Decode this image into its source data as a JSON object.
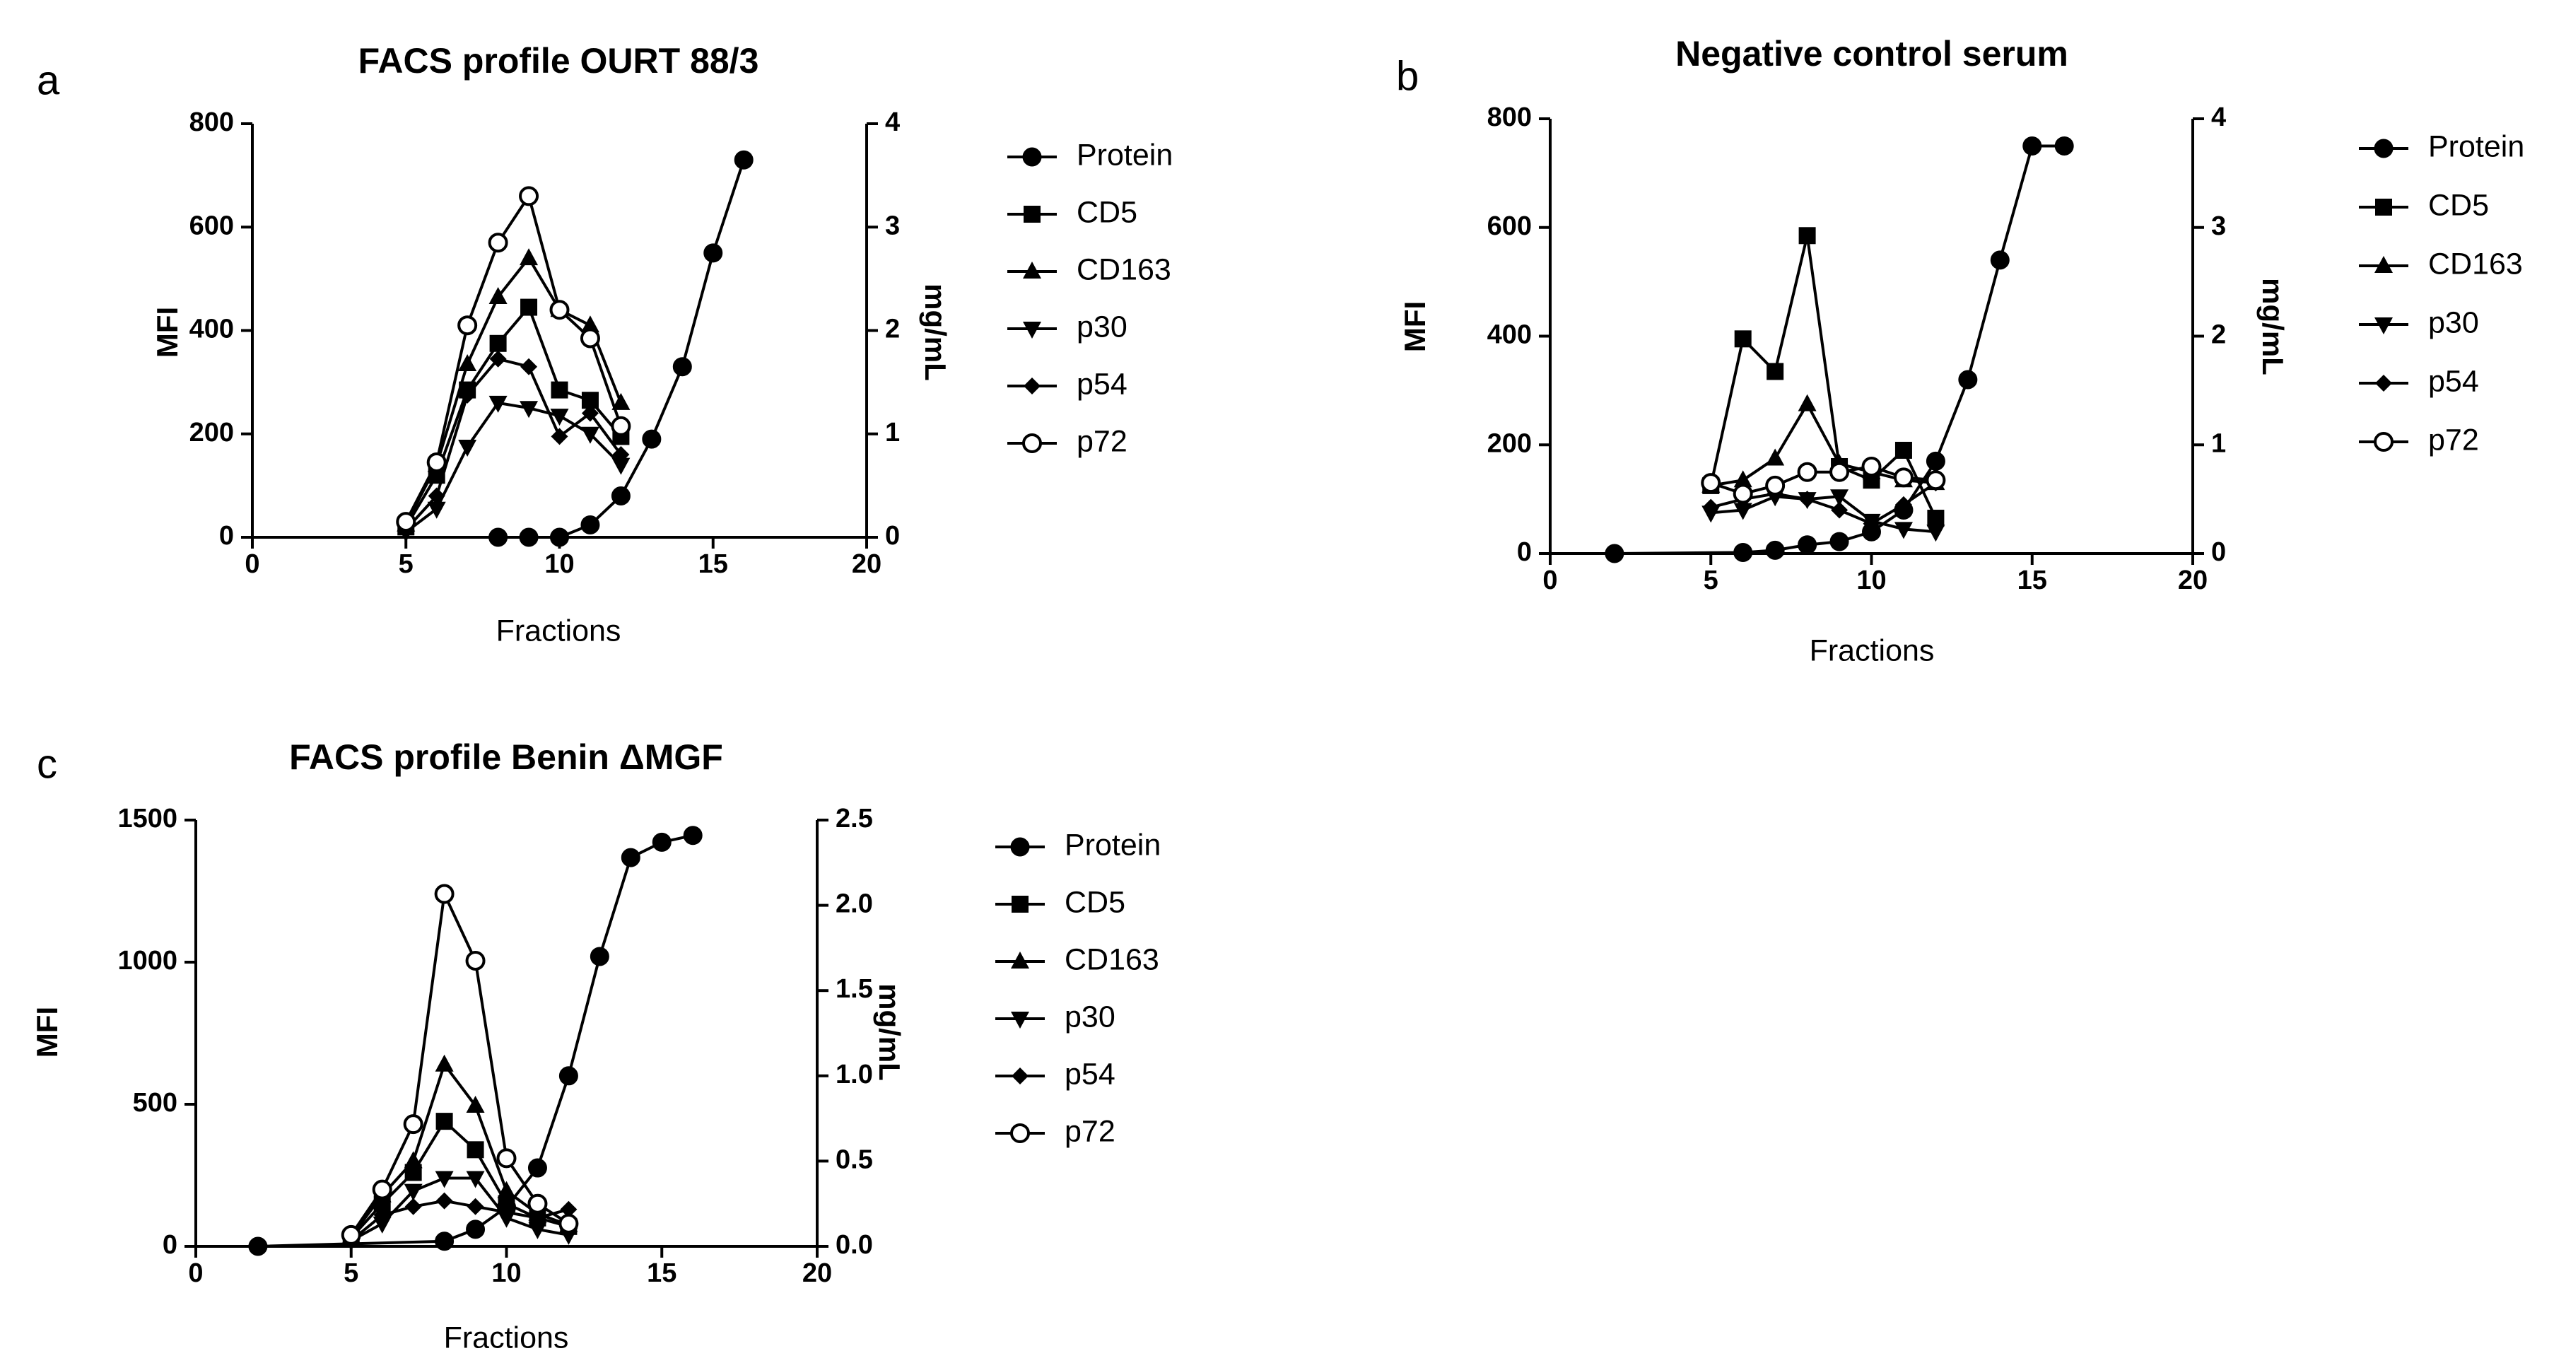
{
  "chart_data": [
    {
      "type": "line",
      "panel": "a",
      "title": "FACS profile OURT 88/3",
      "xlabel": "Fractions",
      "ylabel": "MFI",
      "y2label": "mg/mL",
      "xlim": [
        0,
        20
      ],
      "ylim": [
        0,
        800
      ],
      "y2lim": [
        0,
        4
      ],
      "xticks": [
        0,
        5,
        10,
        15,
        20
      ],
      "yticks": [
        0,
        200,
        400,
        600,
        800
      ],
      "y2ticks": [
        0,
        1,
        2,
        3,
        4
      ],
      "grid": false,
      "legend": "right",
      "series": [
        {
          "name": "Protein",
          "axis": "right",
          "marker": "circle-filled",
          "x": [
            8,
            9,
            10,
            11,
            12,
            13,
            14,
            15,
            16
          ],
          "y": [
            0,
            0,
            0,
            0.12,
            0.4,
            0.95,
            1.65,
            2.75,
            3.65
          ]
        },
        {
          "name": "CD5",
          "axis": "left",
          "marker": "square",
          "x": [
            5,
            6,
            7,
            8,
            9,
            10,
            11,
            12
          ],
          "y": [
            20,
            120,
            285,
            375,
            445,
            285,
            265,
            195
          ]
        },
        {
          "name": "CD163",
          "axis": "left",
          "marker": "triangle-up",
          "x": [
            5,
            6,
            7,
            8,
            9,
            10,
            11,
            12
          ],
          "y": [
            25,
            140,
            335,
            465,
            540,
            440,
            410,
            260
          ]
        },
        {
          "name": "p30",
          "axis": "left",
          "marker": "triangle-down",
          "x": [
            5,
            6,
            7,
            8,
            9,
            10,
            11,
            12
          ],
          "y": [
            10,
            55,
            175,
            260,
            250,
            235,
            200,
            140
          ]
        },
        {
          "name": "p54",
          "axis": "left",
          "marker": "diamond",
          "x": [
            5,
            6,
            7,
            8,
            9,
            10,
            11,
            12
          ],
          "y": [
            15,
            80,
            275,
            345,
            330,
            195,
            240,
            160
          ]
        },
        {
          "name": "p72",
          "axis": "left",
          "marker": "circle-open",
          "x": [
            5,
            6,
            7,
            8,
            9,
            10,
            11,
            12
          ],
          "y": [
            30,
            145,
            410,
            570,
            660,
            440,
            385,
            215
          ]
        }
      ]
    },
    {
      "type": "line",
      "panel": "b",
      "title": "Negative control serum",
      "xlabel": "Fractions",
      "ylabel": "MFI",
      "y2label": "mg/mL",
      "xlim": [
        0,
        20
      ],
      "ylim": [
        0,
        800
      ],
      "y2lim": [
        0,
        4
      ],
      "xticks": [
        0,
        5,
        10,
        15,
        20
      ],
      "yticks": [
        0,
        200,
        400,
        600,
        800
      ],
      "y2ticks": [
        0,
        1,
        2,
        3,
        4
      ],
      "grid": false,
      "legend": "right",
      "series": [
        {
          "name": "Protein",
          "axis": "right",
          "marker": "circle-filled",
          "x": [
            2,
            6,
            7,
            8,
            9,
            10,
            11,
            12,
            13,
            14,
            15,
            16
          ],
          "y": [
            0,
            0.01,
            0.03,
            0.08,
            0.11,
            0.2,
            0.4,
            0.85,
            1.6,
            2.7,
            3.75,
            3.75
          ]
        },
        {
          "name": "CD5",
          "axis": "left",
          "marker": "square",
          "x": [
            5,
            6,
            7,
            8,
            9,
            10,
            11,
            12
          ],
          "y": [
            125,
            395,
            335,
            585,
            160,
            135,
            190,
            65
          ]
        },
        {
          "name": "CD163",
          "axis": "left",
          "marker": "triangle-up",
          "x": [
            5,
            6,
            7,
            8,
            9,
            10,
            11,
            12
          ],
          "y": [
            125,
            135,
            175,
            275,
            165,
            150,
            135,
            130
          ]
        },
        {
          "name": "p30",
          "axis": "left",
          "marker": "triangle-down",
          "x": [
            5,
            6,
            7,
            8,
            9,
            10,
            11,
            12
          ],
          "y": [
            75,
            80,
            105,
            100,
            105,
            60,
            45,
            40
          ]
        },
        {
          "name": "p54",
          "axis": "left",
          "marker": "diamond",
          "x": [
            5,
            6,
            7,
            8,
            9,
            10,
            11,
            12
          ],
          "y": [
            85,
            100,
            110,
            100,
            80,
            55,
            90,
            130
          ]
        },
        {
          "name": "p72",
          "axis": "left",
          "marker": "circle-open",
          "x": [
            5,
            6,
            7,
            8,
            9,
            10,
            11,
            12
          ],
          "y": [
            130,
            110,
            125,
            150,
            150,
            160,
            140,
            135
          ]
        }
      ]
    },
    {
      "type": "line",
      "panel": "c",
      "title": "FACS profile Benin ΔMGF",
      "xlabel": "Fractions",
      "ylabel": "MFI",
      "y2label": "mg/mL",
      "xlim": [
        0,
        20
      ],
      "ylim": [
        0,
        1500
      ],
      "y2lim": [
        0,
        2.5
      ],
      "xticks": [
        0,
        5,
        10,
        15,
        20
      ],
      "yticks": [
        0,
        500,
        1000,
        1500
      ],
      "y2ticks": [
        0.0,
        0.5,
        1.0,
        1.5,
        2.0,
        2.5
      ],
      "grid": false,
      "legend": "right",
      "series": [
        {
          "name": "Protein",
          "axis": "right",
          "marker": "circle-filled",
          "x": [
            2,
            8,
            9,
            10,
            11,
            12,
            13,
            14,
            15,
            16
          ],
          "y": [
            0,
            0.03,
            0.1,
            0.23,
            0.46,
            1.0,
            1.7,
            2.28,
            2.37,
            2.41
          ]
        },
        {
          "name": "CD5",
          "axis": "left",
          "marker": "square",
          "x": [
            5,
            6,
            7,
            8,
            9,
            10,
            11,
            12
          ],
          "y": [
            30,
            150,
            260,
            440,
            340,
            150,
            100,
            70
          ]
        },
        {
          "name": "CD163",
          "axis": "left",
          "marker": "triangle-up",
          "x": [
            5,
            6,
            7,
            8,
            9,
            10,
            11,
            12
          ],
          "y": [
            35,
            180,
            300,
            640,
            495,
            195,
            115,
            75
          ]
        },
        {
          "name": "p30",
          "axis": "left",
          "marker": "triangle-down",
          "x": [
            5,
            6,
            7,
            8,
            9,
            10,
            11,
            12
          ],
          "y": [
            20,
            80,
            195,
            240,
            240,
            100,
            60,
            40
          ]
        },
        {
          "name": "p54",
          "axis": "left",
          "marker": "diamond",
          "x": [
            5,
            6,
            7,
            8,
            9,
            10,
            11,
            12
          ],
          "y": [
            20,
            110,
            140,
            160,
            140,
            120,
            100,
            130
          ]
        },
        {
          "name": "p72",
          "axis": "left",
          "marker": "circle-open",
          "x": [
            5,
            6,
            7,
            8,
            9,
            10,
            11,
            12
          ],
          "y": [
            40,
            200,
            430,
            1240,
            1005,
            310,
            150,
            80
          ]
        }
      ]
    }
  ]
}
